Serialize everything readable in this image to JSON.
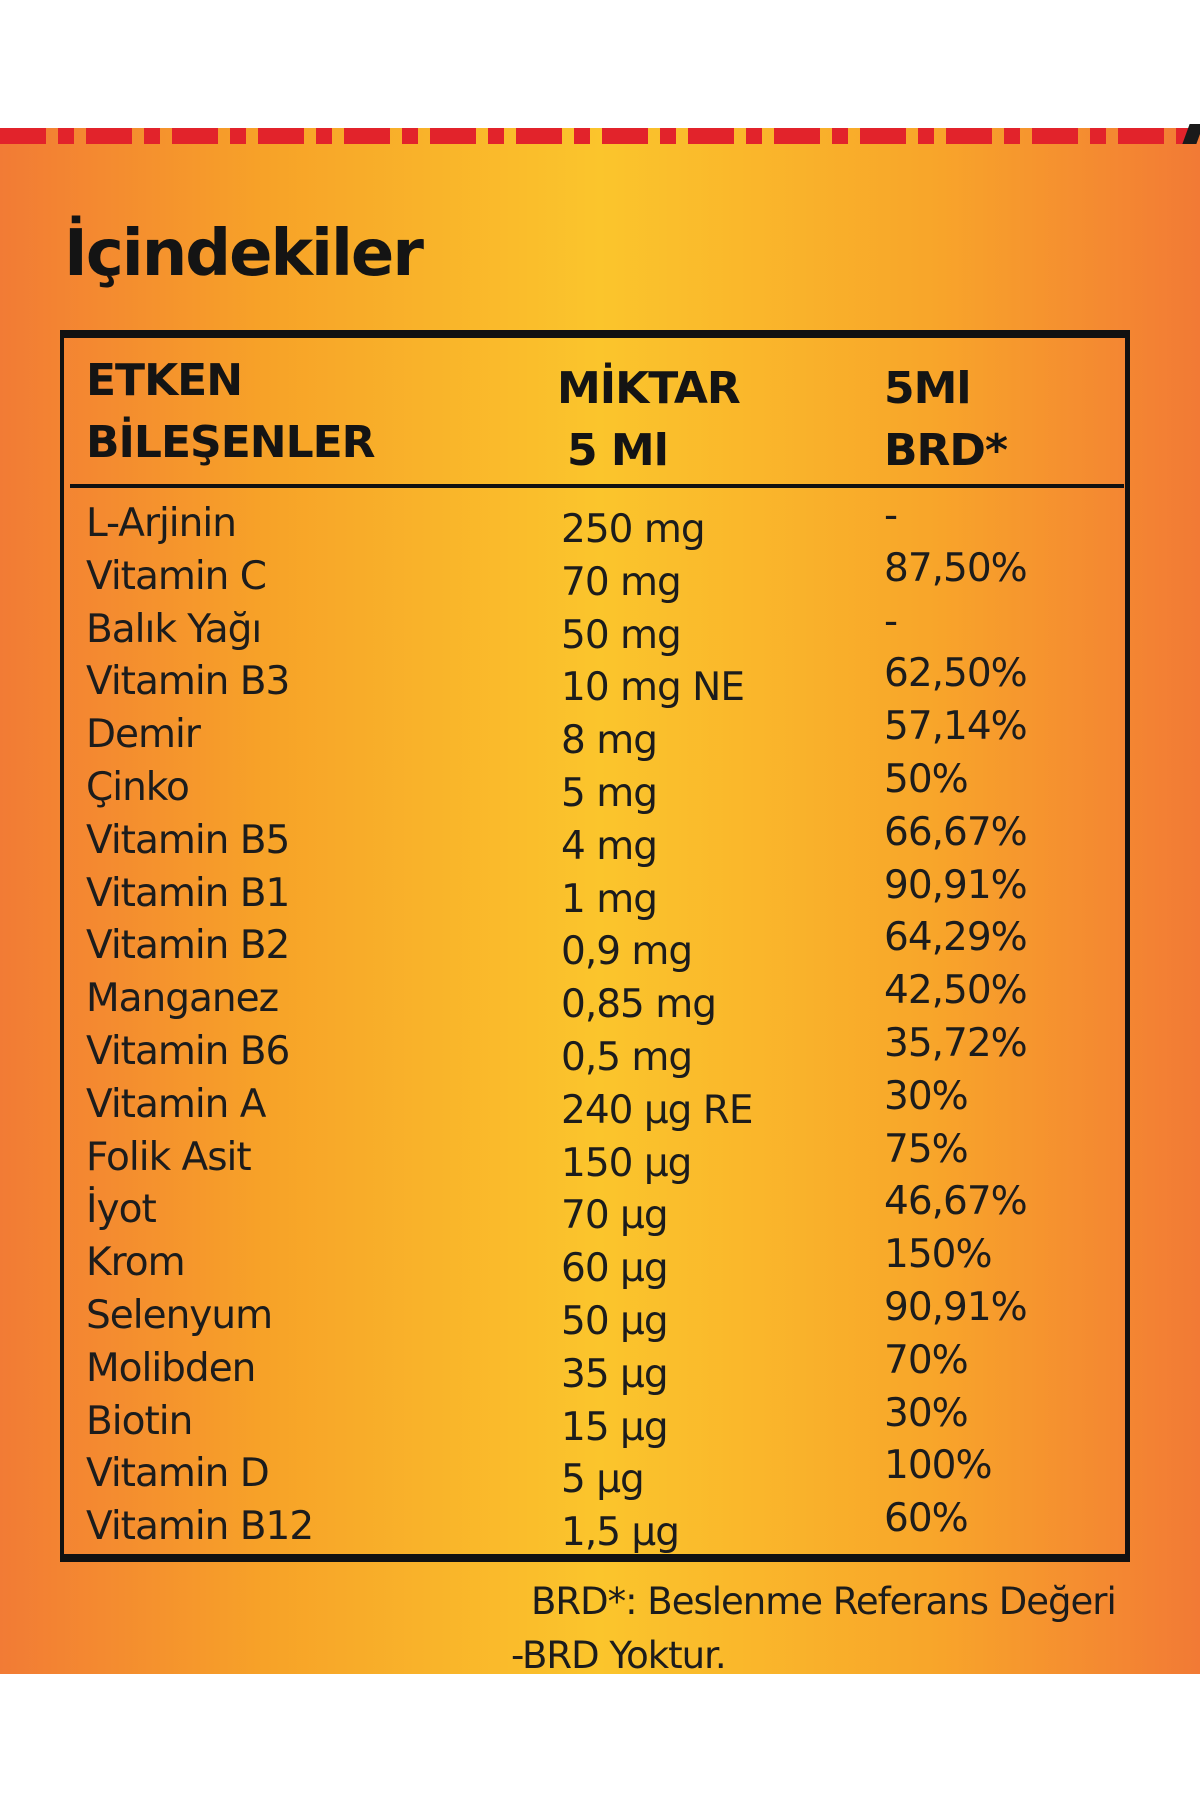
{
  "title": "İçindekiler",
  "table": {
    "headers": {
      "col1": [
        "ETKEN",
        "BİLEŞENLER"
      ],
      "col2": [
        "MİKTAR",
        "5 Ml"
      ],
      "col3": [
        "5Ml",
        "BRD*"
      ]
    },
    "rows": [
      {
        "name": "L-Arjinin",
        "amount": "250 mg",
        "brd": "-"
      },
      {
        "name": "Vitamin C",
        "amount": "70 mg",
        "brd": "87,50%"
      },
      {
        "name": "Balık Yağı",
        "amount": "50 mg",
        "brd": "-"
      },
      {
        "name": "Vitamin B3",
        "amount": "10 mg NE",
        "brd": "62,50%"
      },
      {
        "name": "Demir",
        "amount": "8 mg",
        "brd": "57,14%"
      },
      {
        "name": "Çinko",
        "amount": "5 mg",
        "brd": "50%"
      },
      {
        "name": "Vitamin B5",
        "amount": "4 mg",
        "brd": "66,67%"
      },
      {
        "name": "Vitamin B1",
        "amount": "1 mg",
        "brd": "90,91%"
      },
      {
        "name": "Vitamin B2",
        "amount": "0,9 mg",
        "brd": "64,29%"
      },
      {
        "name": "Manganez",
        "amount": "0,85 mg",
        "brd": "42,50%"
      },
      {
        "name": "Vitamin B6",
        "amount": "0,5 mg",
        "brd": "35,72%"
      },
      {
        "name": "Vitamin A",
        "amount": "240 µg RE",
        "brd": "30%"
      },
      {
        "name": "Folik Asit",
        "amount": "150 µg",
        "brd": "75%"
      },
      {
        "name": "İyot",
        "amount": "70 µg",
        "brd": "46,67%"
      },
      {
        "name": "Krom",
        "amount": "60 µg",
        "brd": "150%"
      },
      {
        "name": "Selenyum",
        "amount": "50 µg",
        "brd": "90,91%"
      },
      {
        "name": "Molibden",
        "amount": "35 µg",
        "brd": "70%"
      },
      {
        "name": "Biotin",
        "amount": "15 µg",
        "brd": "30%"
      },
      {
        "name": "Vitamin D",
        "amount": "5 µg",
        "brd": "100%"
      },
      {
        "name": "Vitamin B12",
        "amount": "1,5 µg",
        "brd": "60%"
      }
    ]
  },
  "footnotes": [
    "BRD*: Beslenme Referans Değeri",
    "-BRD Yoktur."
  ],
  "colors": {
    "dash_red": "#e2232b",
    "panel_orange": "#f27b35",
    "panel_yellow": "#fbc52c",
    "ink": "#141414"
  }
}
